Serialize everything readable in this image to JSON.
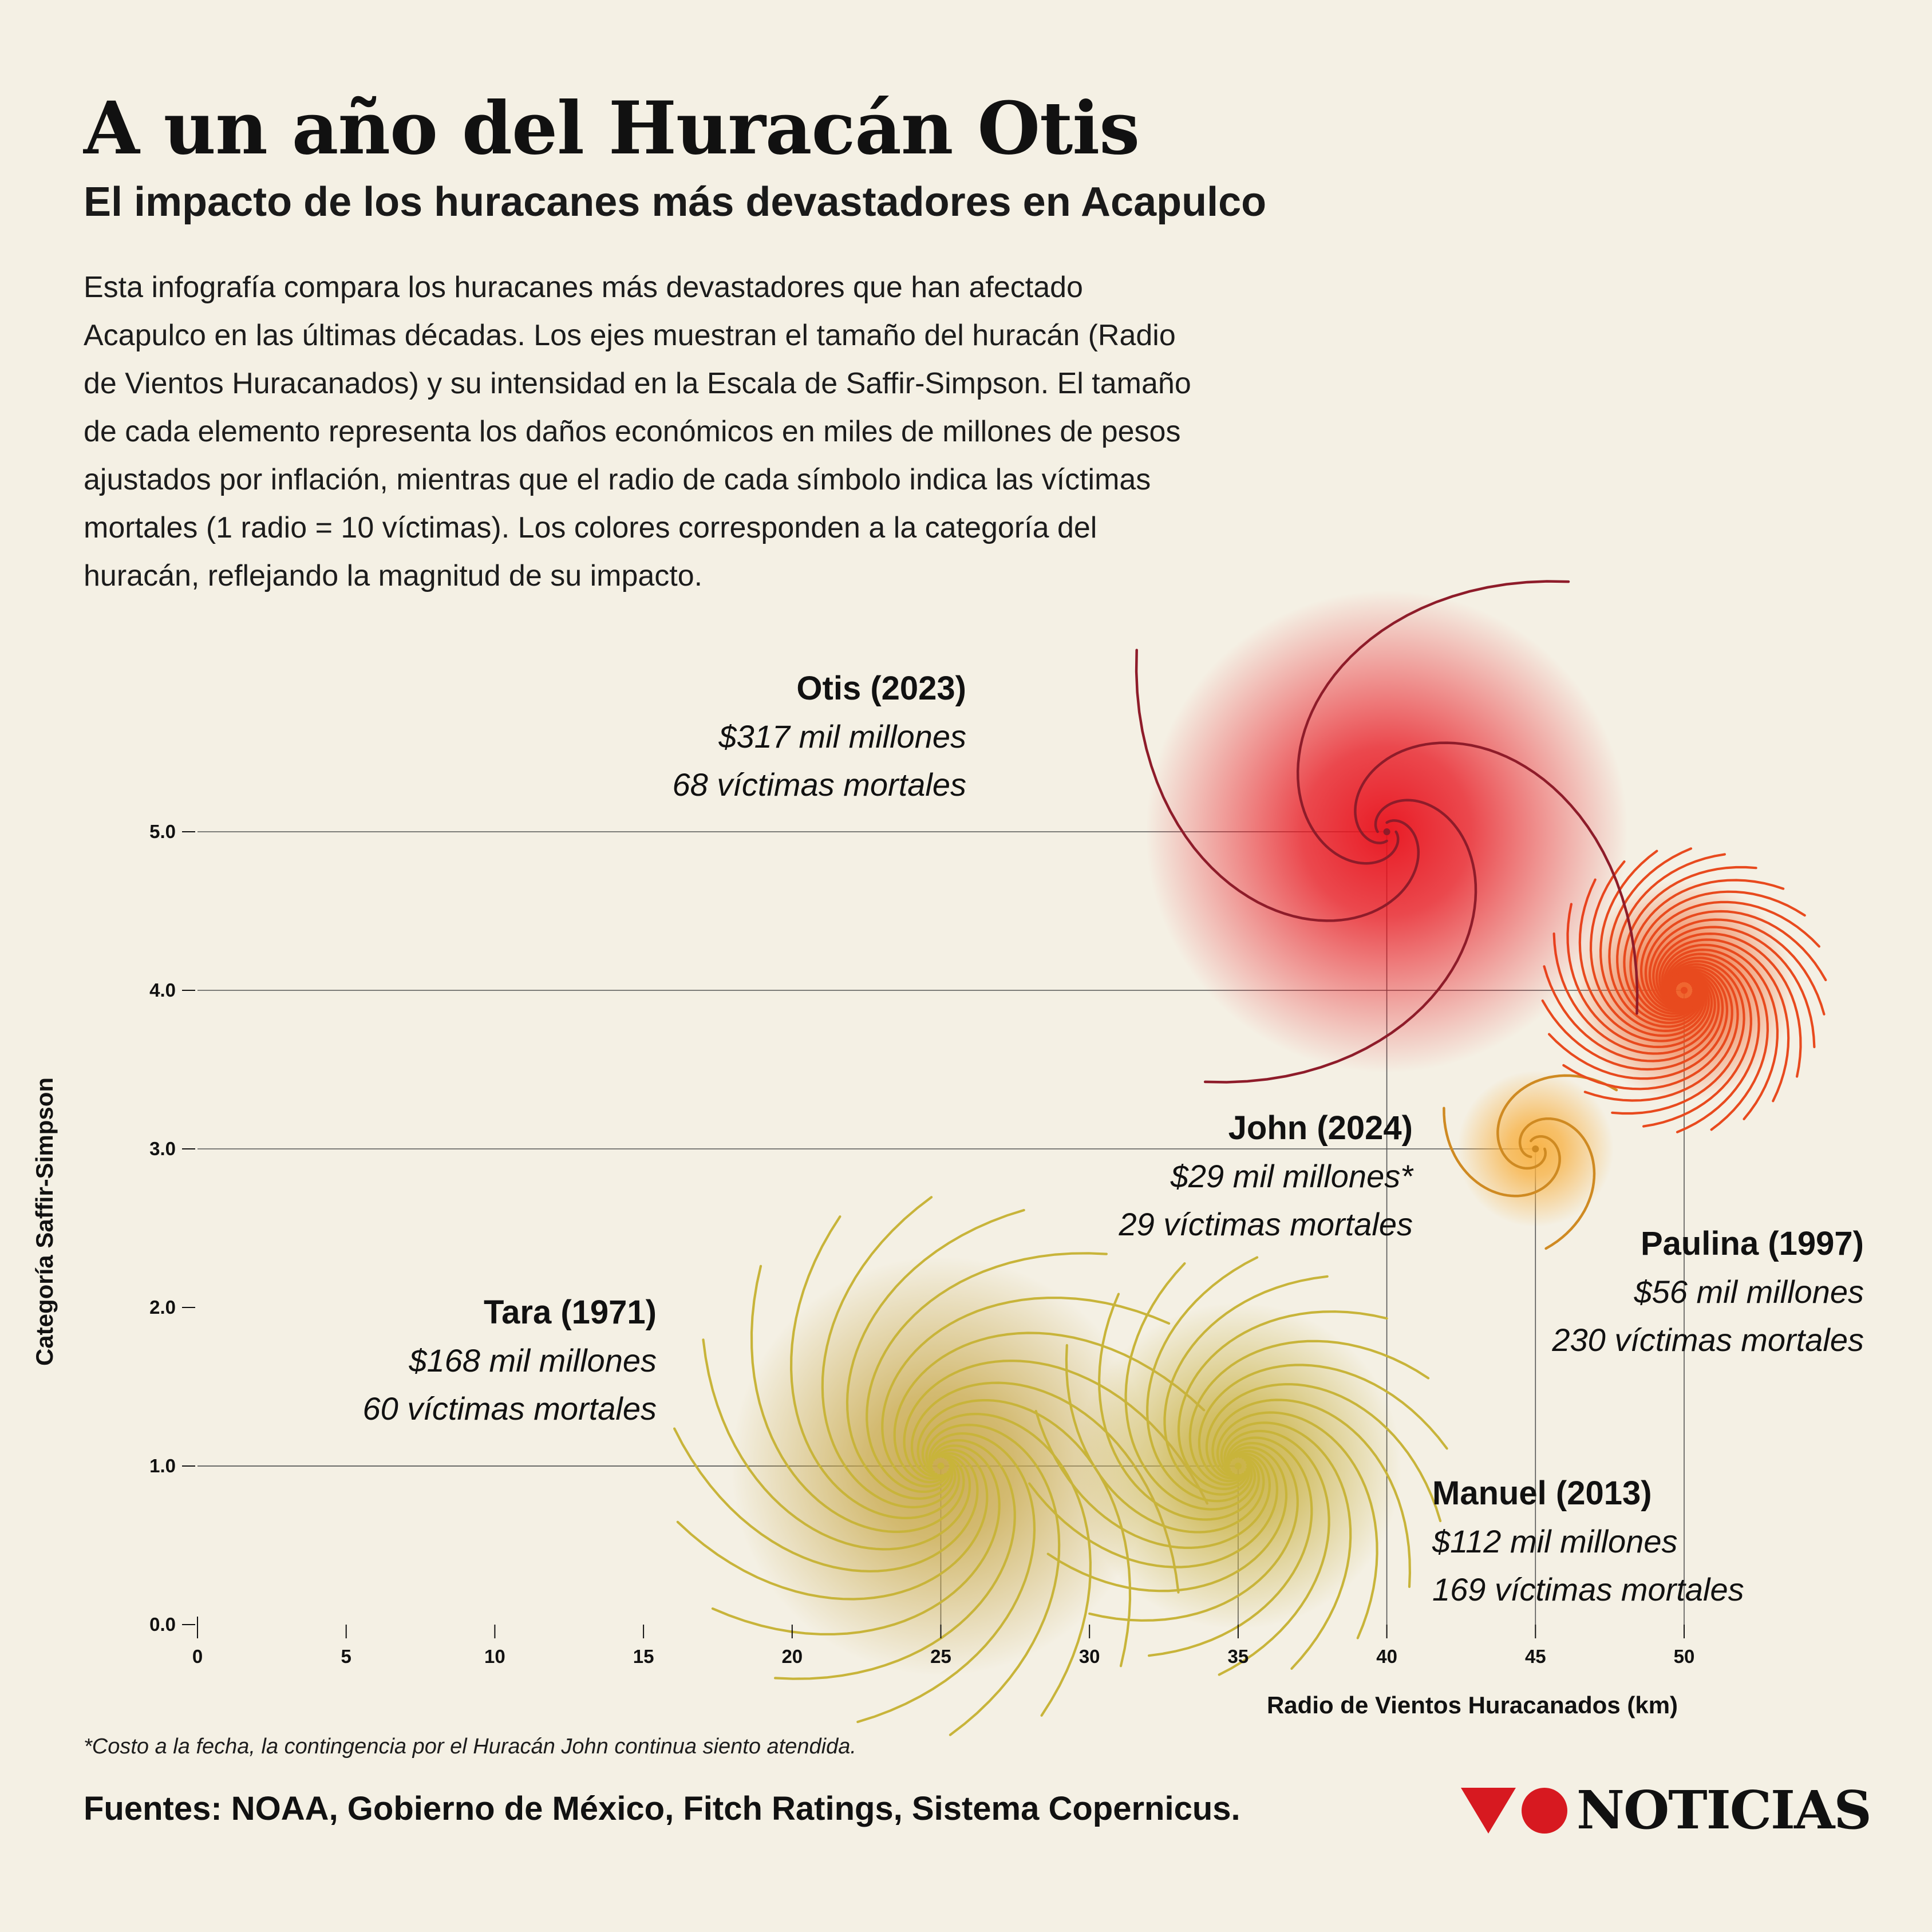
{
  "header": {
    "title": "A un año del Huracán Otis",
    "subtitle": "El impacto de los huracanes más devastadores en Acapulco",
    "intro_lines": [
      "Esta infografía compara los huracanes más devastadores que han afectado",
      "Acapulco en las últimas décadas. Los ejes muestran el tamaño del huracán (Radio",
      "de Vientos Huracanados) y su intensidad en la Escala de Saffir-Simpson. El tamaño",
      "de cada elemento representa los daños económicos en miles de millones de pesos",
      "ajustados por inflación, mientras que el radio de cada símbolo indica las víctimas",
      "mortales (1 radio = 10 víctimas). Los colores corresponden a la categoría del",
      "huracán, reflejando la magnitud de su impacto."
    ]
  },
  "chart_data": {
    "type": "scatter",
    "xlabel": "Radio de Vientos Huracanados (km)",
    "ylabel": "Categoría Saffir-Simpson",
    "xlim": [
      0,
      50
    ],
    "ylim": [
      0,
      5
    ],
    "x_ticks": [
      "0",
      "5",
      "10",
      "15",
      "20",
      "25",
      "30",
      "35",
      "40",
      "45",
      "50"
    ],
    "y_ticks": [
      "0.0",
      "1.0",
      "2.0",
      "3.0",
      "4.0",
      "5.0"
    ],
    "points": [
      {
        "name": "Otis (2023)",
        "x": 40,
        "y": 5,
        "damage": 317,
        "deaths": 68,
        "damage_label": "$317 mil millones",
        "deaths_label": "68 víctimas mortales",
        "color": "#8e1c2a",
        "glow": "#e8101b"
      },
      {
        "name": "Paulina (1997)",
        "x": 50,
        "y": 4,
        "damage": 56,
        "deaths": 230,
        "damage_label": "$56 mil millones",
        "deaths_label": "230 víctimas mortales",
        "color": "#e84a1e",
        "glow": "#f05a20"
      },
      {
        "name": "John (2024)",
        "x": 45,
        "y": 3,
        "damage": 29,
        "deaths": 29,
        "damage_label": "$29 mil millones*",
        "deaths_label": "29 víctimas mortales",
        "color": "#cf8a22",
        "glow": "#f8b040"
      },
      {
        "name": "Tara (1971)",
        "x": 25,
        "y": 1,
        "damage": 168,
        "deaths": 60,
        "damage_label": "$168 mil millones",
        "deaths_label": "60 víctimas mortales",
        "color": "#c8b43a",
        "glow": "#c8a84a"
      },
      {
        "name": "Manuel (2013)",
        "x": 35,
        "y": 1,
        "damage": 112,
        "deaths": 169,
        "damage_label": "$112 mil millones",
        "deaths_label": "169 víctimas mortales",
        "color": "#c8b43a",
        "glow": "#c8b040"
      }
    ]
  },
  "footer": {
    "footnote": "*Costo a la fecha, la contingencia por el Huracán John continua siento atendida.",
    "sources": "Fuentes: NOAA, Gobierno de México, Fitch Ratings, Sistema Copernicus.",
    "logo_text": "NOTICIAS",
    "logo_colors": {
      "triangle": "#d71920",
      "circle": "#d71920"
    }
  }
}
